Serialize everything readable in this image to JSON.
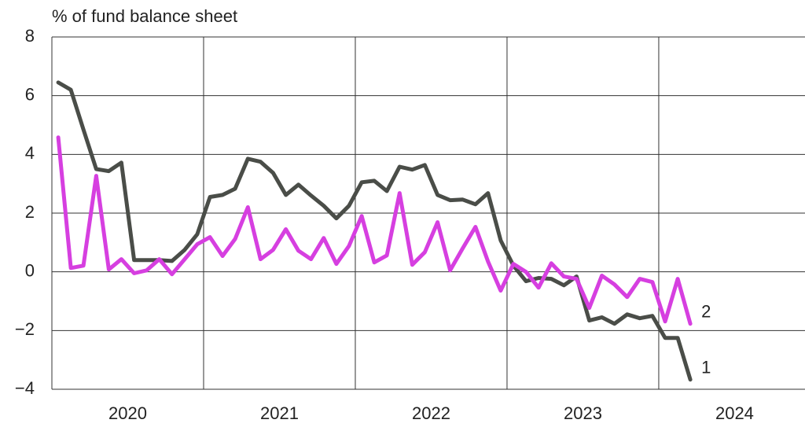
{
  "chart_data": {
    "type": "line",
    "y_label": "% of fund balance sheet",
    "x": [
      2020.042,
      2020.125,
      2020.208,
      2020.292,
      2020.375,
      2020.458,
      2020.542,
      2020.625,
      2020.708,
      2020.792,
      2020.875,
      2020.958,
      2021.042,
      2021.125,
      2021.208,
      2021.292,
      2021.375,
      2021.458,
      2021.542,
      2021.625,
      2021.708,
      2021.792,
      2021.875,
      2021.958,
      2022.042,
      2022.125,
      2022.208,
      2022.292,
      2022.375,
      2022.458,
      2022.542,
      2022.625,
      2022.708,
      2022.792,
      2022.875,
      2022.958,
      2023.042,
      2023.125,
      2023.208,
      2023.292,
      2023.375,
      2023.458,
      2023.542,
      2023.625,
      2023.708,
      2023.792,
      2023.875,
      2023.958,
      2024.042,
      2024.125,
      2024.208
    ],
    "series": [
      {
        "name": "1",
        "color": "#4a4d48",
        "values": [
          6.45,
          6.2,
          4.85,
          3.5,
          3.43,
          3.72,
          0.4,
          0.4,
          0.4,
          0.37,
          0.75,
          1.28,
          2.55,
          2.62,
          2.83,
          3.85,
          3.75,
          3.37,
          2.62,
          2.97,
          2.6,
          2.25,
          1.82,
          2.25,
          3.05,
          3.1,
          2.75,
          3.58,
          3.48,
          3.64,
          2.62,
          2.44,
          2.46,
          2.3,
          2.68,
          1.07,
          0.21,
          -0.32,
          -0.21,
          -0.24,
          -0.46,
          -0.16,
          -1.66,
          -1.55,
          -1.77,
          -1.45,
          -1.58,
          -1.5,
          -2.25,
          -2.25,
          -3.67
        ]
      },
      {
        "name": "2",
        "color": "#d63fe0",
        "values": [
          4.58,
          0.13,
          0.21,
          3.27,
          0.08,
          0.43,
          -0.05,
          0.05,
          0.43,
          -0.08,
          0.43,
          0.94,
          1.18,
          0.54,
          1.12,
          2.2,
          0.43,
          0.75,
          1.45,
          0.72,
          0.43,
          1.15,
          0.27,
          0.88,
          1.9,
          0.32,
          0.56,
          2.68,
          0.24,
          0.67,
          1.69,
          0.05,
          0.8,
          1.53,
          0.35,
          -0.64,
          0.27,
          0,
          -0.54,
          0.29,
          -0.16,
          -0.24,
          -1.23,
          -0.13,
          -0.43,
          -0.86,
          -0.24,
          -0.35,
          -1.69,
          -0.24,
          -1.77
        ]
      }
    ],
    "xlim": [
      2020,
      2024.964
    ],
    "xticks": [
      {
        "value": 2020,
        "label": "2020"
      },
      {
        "value": 2021,
        "label": "2021"
      },
      {
        "value": 2022,
        "label": "2022"
      },
      {
        "value": 2023,
        "label": "2023"
      },
      {
        "value": 2024,
        "label": "2024"
      }
    ],
    "ylim": [
      -4,
      8
    ],
    "yticks": [
      {
        "value": -4,
        "label": "−4"
      },
      {
        "value": -2,
        "label": "−2"
      },
      0,
      2,
      4,
      6,
      8
    ],
    "grid": true
  }
}
